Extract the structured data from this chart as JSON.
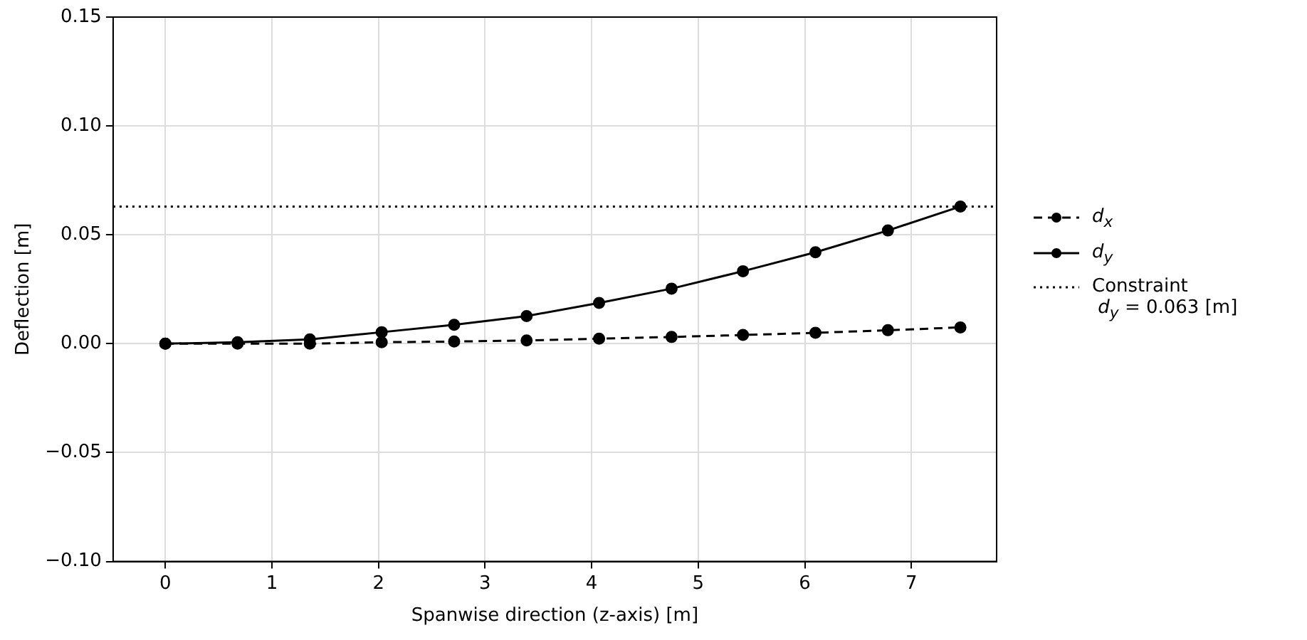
{
  "chart_data": {
    "type": "line",
    "xlabel": "Spanwise direction (z-axis) [m]",
    "ylabel": "Deflection [m]",
    "x": [
      0,
      0.678,
      1.356,
      2.03,
      2.71,
      3.39,
      4.07,
      4.75,
      5.42,
      6.1,
      6.78,
      7.46
    ],
    "series": [
      {
        "name": "d$_{x}$",
        "color": "#000000",
        "line_style": "dashed",
        "values": [
          0,
          0,
          0,
          0.0007,
          0.001,
          0.0015,
          0.0023,
          0.0031,
          0.004,
          0.005,
          0.0062,
          0.0075
        ]
      },
      {
        "name": "d$_{y}$",
        "color": "#000000",
        "line_style": "solid",
        "values": [
          0,
          0.0007,
          0.002,
          0.0053,
          0.0087,
          0.0127,
          0.0187,
          0.0253,
          0.0333,
          0.042,
          0.052,
          0.063
        ]
      }
    ],
    "ref_lines": [
      {
        "axis": "y",
        "value": 0.063,
        "label": "Constraint\n d$_{y}$ = 0.063 [m]",
        "color": "#000000",
        "line_style": "dotted"
      }
    ],
    "xlim": [
      -0.49,
      7.8
    ],
    "xticks": [
      0,
      1,
      2,
      3,
      4,
      5,
      6,
      7
    ],
    "ylim": [
      -0.1,
      0.15
    ],
    "yticks": [
      {
        "value": -0.1,
        "label": "−0.10"
      },
      {
        "value": -0.05,
        "label": "−0.05"
      },
      {
        "value": 0,
        "label": "0.00"
      },
      {
        "value": 0.05,
        "label": "0.05"
      },
      {
        "value": 0.1,
        "label": "0.10"
      },
      {
        "value": 0.15,
        "label": "0.15"
      }
    ],
    "grid": true,
    "legend": "right",
    "marker": "circle"
  }
}
